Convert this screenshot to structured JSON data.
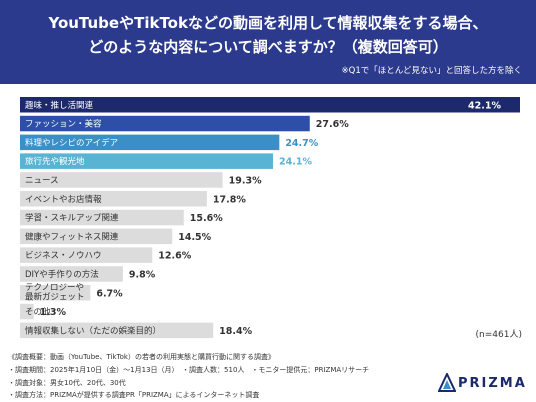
{
  "header": {
    "title_line1": "YouTubeやTikTokなどの動画を利用して情報収集をする場合、",
    "title_line2": "どのような内容について調べますか？（複数回答可）",
    "note": "※Q1で「ほとんど見ない」と回答した方を除く"
  },
  "chart_data": {
    "type": "bar",
    "orientation": "horizontal",
    "categories": [
      "趣味・推し活関連",
      "ファッション・美容",
      "料理やレシピのアイデア",
      "旅行先や観光地",
      "ニュース",
      "イベントやお店情報",
      "学習・スキルアップ関連",
      "健康やフィットネス関連",
      "ビジネス・ノウハウ",
      "DIYや手作りの方法",
      "テクノロジーや\n最新ガジェット",
      "その他",
      "情報収集しない（ただの娯楽目的）"
    ],
    "values": [
      42.1,
      27.6,
      24.7,
      24.1,
      19.3,
      17.8,
      15.6,
      14.5,
      12.6,
      9.8,
      6.7,
      1.3,
      18.4
    ],
    "value_labels": [
      "42.1%",
      "27.6%",
      "24.7%",
      "24.1%",
      "19.3%",
      "17.8%",
      "15.6%",
      "14.5%",
      "12.6%",
      "9.8%",
      "6.7%",
      "1.3%",
      "18.4%"
    ],
    "xlim": [
      0,
      45
    ],
    "grid": false,
    "colors": {
      "top1": "#1c2a6b",
      "top2": "#2e4fa8",
      "top3": "#3a8fc7",
      "top4": "#58b4d2",
      "rest": "#dcdcdc"
    }
  },
  "n_label": "(n=461人)",
  "footer": {
    "line1": "《調査概要：動画（YouTube、TikTok）の若者の利用実態と購買行動に関する調査》",
    "line2": "・調査期間：2025年1月10日（金）〜1月13日（月）　・調査人数：510人　・モニター提供元：PRIZMAリサーチ",
    "line3": "・調査対象：男女10代、20代、30代",
    "line4": "・調査方法：PRIZMAが提供する調査PR「PRIZMA」によるインターネット調査"
  },
  "logo": {
    "text": "PRIZMA",
    "icon": "prizma-logo-icon"
  }
}
